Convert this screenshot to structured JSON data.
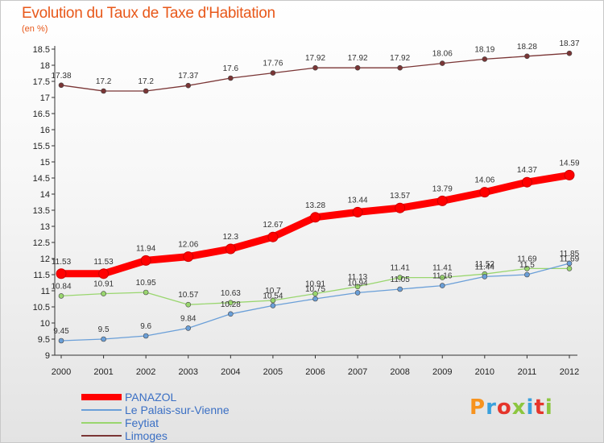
{
  "title": "Evolution du Taux de Taxe d'Habitation",
  "unit_label": "(en %)",
  "logo": {
    "text": "Proxiti",
    "colors": [
      "#f7931e",
      "#3aa0dc",
      "#e5352b",
      "#8cc63f",
      "#3aa0dc",
      "#e5352b",
      "#8cc63f"
    ]
  },
  "chart_data": {
    "type": "line",
    "x": [
      2000,
      2001,
      2002,
      2003,
      2004,
      2005,
      2006,
      2007,
      2008,
      2009,
      2010,
      2011,
      2012
    ],
    "ylim": [
      9,
      18.5
    ],
    "yticks": [
      "9",
      "9.5",
      "10",
      "10.5",
      "11",
      "11.5",
      "12",
      "12.5",
      "13",
      "13.5",
      "14",
      "14.5",
      "15",
      "15.5",
      "16",
      "16.5",
      "17",
      "17.5",
      "18",
      "18.5"
    ],
    "grid": false,
    "legend_position": "bottom-left",
    "series": [
      {
        "name": "PANAZOL",
        "color": "#ff0000",
        "values": [
          11.53,
          11.53,
          11.94,
          12.06,
          12.3,
          12.67,
          13.28,
          13.44,
          13.57,
          13.79,
          14.06,
          14.37,
          14.59
        ],
        "labels": [
          "11.53",
          "11.53",
          "11.94",
          "12.06",
          "12.3",
          "12.67",
          "13.28",
          "13.44",
          "13.57",
          "13.79",
          "14.06",
          "14.37",
          "14.59"
        ]
      },
      {
        "name": "Le Palais-sur-Vienne",
        "color": "#6a9fd8",
        "values": [
          9.45,
          9.5,
          9.6,
          9.84,
          10.28,
          10.54,
          10.75,
          10.94,
          11.05,
          11.16,
          11.44,
          11.5,
          11.85
        ],
        "labels": [
          "9.45",
          "9.5",
          "9.6",
          "9.84",
          "10.28",
          "10.54",
          "10.75",
          "10.94",
          "11.05",
          "11.16",
          "11.44",
          "11.5",
          "11.85"
        ]
      },
      {
        "name": "Feytiat",
        "color": "#99d66e",
        "values": [
          10.84,
          10.91,
          10.95,
          10.57,
          10.63,
          10.7,
          10.91,
          11.13,
          11.41,
          11.41,
          11.52,
          11.69,
          11.69
        ],
        "labels": [
          "10.84",
          "10.91",
          "10.95",
          "10.57",
          "10.63",
          "10.7",
          "10.91",
          "11.13",
          "11.41",
          "11.41",
          "11.52",
          "11.69",
          "11.69"
        ]
      },
      {
        "name": "Limoges",
        "color": "#7a3535",
        "values": [
          17.38,
          17.2,
          17.2,
          17.37,
          17.6,
          17.76,
          17.92,
          17.92,
          17.92,
          18.06,
          18.19,
          18.28,
          18.37
        ],
        "labels": [
          "17.38",
          "17.2",
          "17.2",
          "17.37",
          "17.6",
          "17.76",
          "17.92",
          "17.92",
          "17.92",
          "18.06",
          "18.19",
          "18.28",
          "18.37"
        ]
      }
    ]
  }
}
